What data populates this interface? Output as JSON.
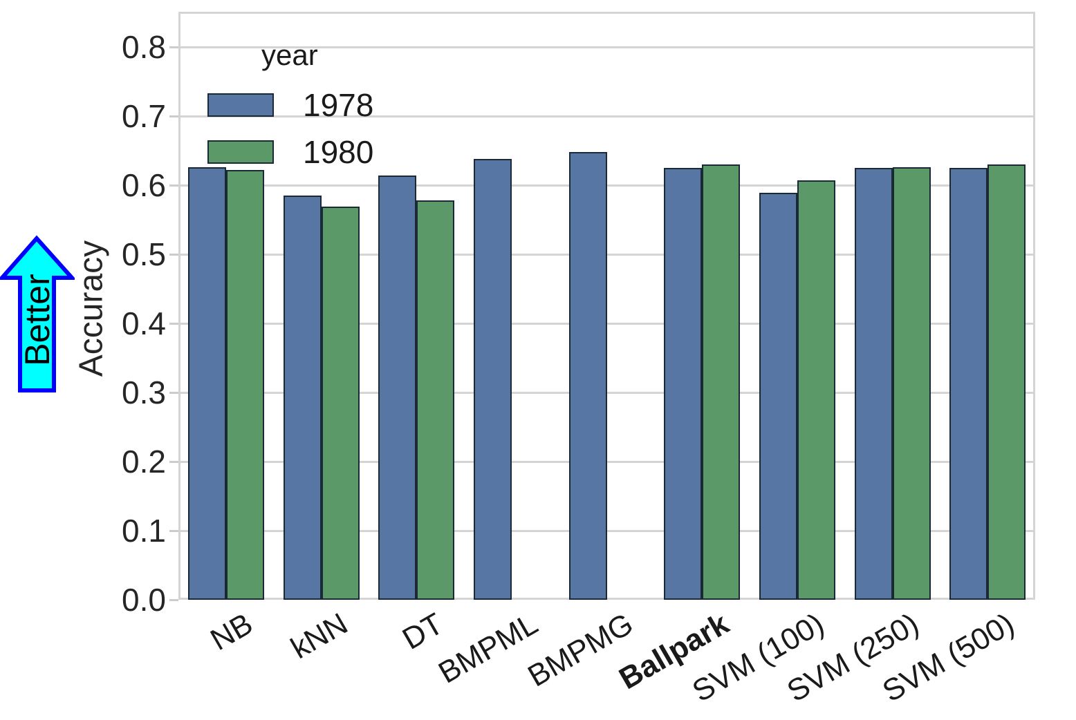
{
  "chart_data": {
    "type": "bar",
    "title": "",
    "categories": [
      "NB",
      "kNN",
      "DT",
      "BMPML",
      "BMPMG",
      "Ballpark",
      "SVM (100)",
      "SVM (250)",
      "SVM (500)"
    ],
    "bold_categories": [
      "Ballpark"
    ],
    "series": [
      {
        "name": "1978",
        "color": "#5876a4",
        "values": [
          0.626,
          0.585,
          0.614,
          0.638,
          0.648,
          0.625,
          0.589,
          0.625,
          0.625
        ]
      },
      {
        "name": "1980",
        "color": "#5b9a68",
        "values": [
          0.622,
          0.569,
          0.578,
          null,
          null,
          0.63,
          0.607,
          0.626,
          0.63
        ]
      }
    ],
    "xlabel": "",
    "ylabel": "Accuracy",
    "ylim": [
      0,
      0.85
    ],
    "yticks": [
      0.0,
      0.1,
      0.2,
      0.3,
      0.4,
      0.5,
      0.6,
      0.7,
      0.8
    ],
    "grid": "horizontal",
    "legend": {
      "title": "year",
      "position": "upper-left-inside"
    },
    "annotation": {
      "label": "Better",
      "direction": "up",
      "fill_color": "#00ffff",
      "border_color": "#0000ff"
    },
    "bar_edge_color": "#1b2836"
  }
}
